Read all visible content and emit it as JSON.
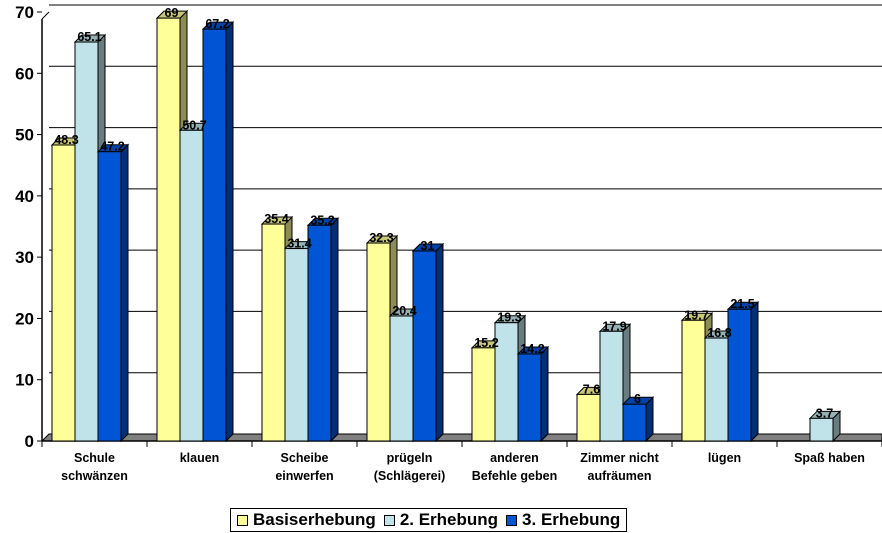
{
  "chart_data": {
    "type": "bar",
    "title": "",
    "xlabel": "",
    "ylabel": "",
    "ylim": [
      0,
      70
    ],
    "yticks": [
      0,
      10,
      20,
      30,
      40,
      50,
      60,
      70
    ],
    "grid": true,
    "legend_position": "bottom",
    "categories": [
      [
        "Schule",
        "schwänzen"
      ],
      [
        "klauen"
      ],
      [
        "Scheibe",
        "einwerfen"
      ],
      [
        "prügeln",
        "(Schlägerei)"
      ],
      [
        "anderen",
        "Befehle geben"
      ],
      [
        "Zimmer nicht",
        "aufräumen"
      ],
      [
        "lügen"
      ],
      [
        "Spaß haben"
      ]
    ],
    "series": [
      {
        "name": "Basiserhebung",
        "color": "#FFFF99",
        "values": [
          48.3,
          69,
          35.4,
          32.3,
          15.2,
          7.6,
          19.7,
          null
        ]
      },
      {
        "name": "2. Erhebung",
        "color": "#BFE3E8",
        "values": [
          65.1,
          50.7,
          31.4,
          20.4,
          19.3,
          17.9,
          16.8,
          3.7
        ]
      },
      {
        "name": "3. Erhebung",
        "color": "#0055D4",
        "values": [
          47.2,
          67.2,
          35.2,
          31,
          14.2,
          6,
          21.5,
          null
        ]
      }
    ],
    "value_labels": [
      [
        "48.3",
        "69",
        "35.4",
        "32.3",
        "15.2",
        "7.6",
        "19.7",
        ""
      ],
      [
        "65.1",
        "50.7",
        "31.4",
        "20.4",
        "19.3",
        "17.9",
        "16.8",
        "3.7"
      ],
      [
        "47.2",
        "67.2",
        "35.2",
        "31",
        "14.2",
        "6",
        "21.5",
        ""
      ]
    ]
  }
}
